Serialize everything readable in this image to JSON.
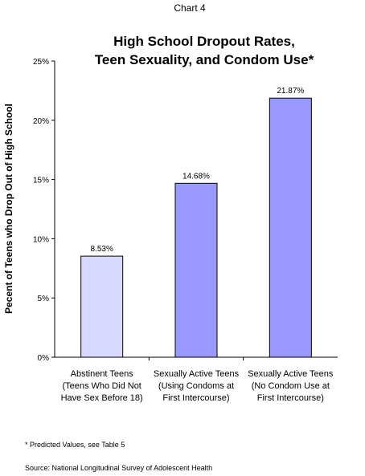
{
  "header": "Chart 4",
  "footnote": "* Predicted Values, see Table 5",
  "source": "Source:  National Longitudinal Survey of Adolescent Health",
  "chart_data": {
    "type": "bar",
    "title": [
      "High School Dropout Rates,",
      "Teen Sexuality, and Condom Use*"
    ],
    "xlabel": "",
    "ylabel": "Pecent of Teens who Drop Out of High School",
    "ylim": [
      0,
      25
    ],
    "y_ticks": [
      0,
      5,
      10,
      15,
      20,
      25
    ],
    "y_tick_labels": [
      "0%",
      "5%",
      "10%",
      "15%",
      "20%",
      "25%"
    ],
    "grid": false,
    "legend": "none",
    "categories": [
      [
        "Abstinent Teens",
        "(Teens Who Did Not",
        "Have Sex Before 18)"
      ],
      [
        "Sexually Active Teens",
        "(Using Condoms at",
        "First Intercourse)"
      ],
      [
        "Sexually Active Teens",
        "(No Condom Use at",
        "First Intercourse)"
      ]
    ],
    "values": [
      8.53,
      14.68,
      21.87
    ],
    "value_labels": [
      "8.53%",
      "14.68%",
      "21.87%"
    ],
    "bar_colors": [
      "#d9d9ff",
      "#9999ff",
      "#9999ff"
    ],
    "bar_edge_color": "#000000"
  }
}
